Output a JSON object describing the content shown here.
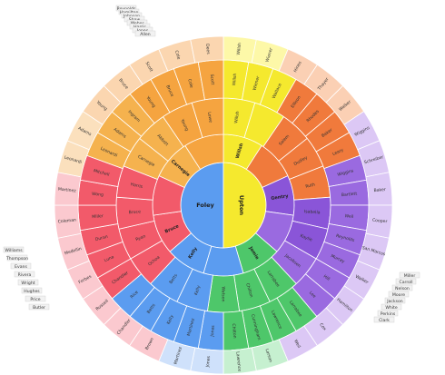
{
  "center": {
    "left": "Foley",
    "right": "Upton"
  },
  "ring1": [
    {
      "label": "Foley",
      "color": "#5b9cf0"
    },
    {
      "label": "Upton",
      "color": "#f5e92e"
    }
  ],
  "ring2": [
    {
      "label": "Willsh",
      "color": "#f5e92e"
    },
    {
      "label": "",
      "color": "#f07a3c"
    },
    {
      "label": "Gentry",
      "color": "#8a55d8"
    },
    {
      "label": "",
      "color": "#9a6ae0"
    },
    {
      "label": "Jamie",
      "color": "#4ec76a"
    },
    {
      "label": "",
      "color": "#5b9cf0"
    },
    {
      "label": "Kelly",
      "color": "#5b9cf0"
    },
    {
      "label": "Bruce",
      "color": "#f25a6a"
    },
    {
      "label": "",
      "color": "#f25a6a"
    },
    {
      "label": "Carnegie",
      "color": "#f5b24e"
    },
    {
      "label": "",
      "color": "#f5a440"
    }
  ],
  "ring3": [
    {
      "label": "Willsh",
      "color": "#f5e92e"
    },
    {
      "label": "",
      "color": "#f5e92e"
    },
    {
      "label": "Salem",
      "color": "#f07a3c"
    },
    {
      "label": "Dudley",
      "color": "#f07a3c"
    },
    {
      "label": "Ruth",
      "color": "#f07a3c"
    },
    {
      "label": "Isabella",
      "color": "#8a55d8"
    },
    {
      "label": "Kaylie",
      "color": "#8a55d8"
    },
    {
      "label": "Jacobsen",
      "color": "#9a6ae0"
    },
    {
      "label": "Larrabee",
      "color": "#4ec76a"
    },
    {
      "label": "Chilton",
      "color": "#4ec76a"
    },
    {
      "label": "Watson",
      "color": "#4ec76a"
    },
    {
      "label": "Kelly",
      "color": "#5b9cf0"
    },
    {
      "label": "Betts",
      "color": "#5b9cf0"
    },
    {
      "label": "Ochoa",
      "color": "#f25a6a"
    },
    {
      "label": "Ryan",
      "color": "#f25a6a"
    },
    {
      "label": "Bruce",
      "color": "#f25a6a"
    },
    {
      "label": "Harris",
      "color": "#f25a6a"
    },
    {
      "label": "Carnegie",
      "color": "#f5b24e"
    },
    {
      "label": "Abbott",
      "color": "#f5b24e"
    },
    {
      "label": "Young",
      "color": "#f5a440"
    },
    {
      "label": "Lowe",
      "color": "#f5a440"
    }
  ],
  "ring4": [
    {
      "label": "Willsh",
      "color": "#f5e92e"
    },
    {
      "label": "Wiener",
      "color": "#f5e92e"
    },
    {
      "label": "Wallace",
      "color": "#f5e92e"
    },
    {
      "label": "Ellison",
      "color": "#f07a3c"
    },
    {
      "label": "Rhodes",
      "color": "#f07a3c"
    },
    {
      "label": "Baker",
      "color": "#f07a3c"
    },
    {
      "label": "Leary",
      "color": "#f07a3c"
    },
    {
      "label": "Wiggins",
      "color": "#9a6ae0"
    },
    {
      "label": "Bartlett",
      "color": "#9a6ae0"
    },
    {
      "label": "Weil",
      "color": "#9a6ae0"
    },
    {
      "label": "Reynolds",
      "color": "#9a6ae0"
    },
    {
      "label": "Murray",
      "color": "#9a6ae0"
    },
    {
      "label": "Hill",
      "color": "#9a6ae0"
    },
    {
      "label": "Lee",
      "color": "#9a6ae0"
    },
    {
      "label": "Larrabee",
      "color": "#4ec76a"
    },
    {
      "label": "Lawrence",
      "color": "#4ec76a"
    },
    {
      "label": "Cunningham",
      "color": "#4ec76a"
    },
    {
      "label": "Chilton",
      "color": "#4ec76a"
    },
    {
      "label": "Jones",
      "color": "#5b9cf0"
    },
    {
      "label": "Martinez",
      "color": "#5b9cf0"
    },
    {
      "label": "Kelly",
      "color": "#5b9cf0"
    },
    {
      "label": "Betts",
      "color": "#5b9cf0"
    },
    {
      "label": "Rice",
      "color": "#5b9cf0"
    },
    {
      "label": "Chandler",
      "color": "#f25a6a"
    },
    {
      "label": "Luna",
      "color": "#f25a6a"
    },
    {
      "label": "Duran",
      "color": "#f25a6a"
    },
    {
      "label": "Miller",
      "color": "#f25a6a"
    },
    {
      "label": "Wong",
      "color": "#f25a6a"
    },
    {
      "label": "Mitchell",
      "color": "#f25a6a"
    },
    {
      "label": "Leonardi",
      "color": "#f5b24e"
    },
    {
      "label": "Adams",
      "color": "#f5b24e"
    },
    {
      "label": "Ingram",
      "color": "#f5b24e"
    },
    {
      "label": "Young",
      "color": "#f5a440"
    },
    {
      "label": "Bruce",
      "color": "#f5a440"
    },
    {
      "label": "Cole",
      "color": "#f5a440"
    },
    {
      "label": "Scott",
      "color": "#f5a440"
    }
  ],
  "ring5": [
    {
      "label": "Willsh",
      "color": "#fdf8a8"
    },
    {
      "label": "Wiener",
      "color": "#fdf8a8"
    },
    {
      "label": "Hines",
      "color": "#fbd0b4"
    },
    {
      "label": "Thayer",
      "color": "#fbd0b4"
    },
    {
      "label": "Walker",
      "color": "#fbd0b4"
    },
    {
      "label": "Wiggins",
      "color": "#dcc8f5"
    },
    {
      "label": "Schreiber",
      "color": "#dcc8f5"
    },
    {
      "label": "Baker",
      "color": "#dcc8f5"
    },
    {
      "label": "Cooper",
      "color": "#dcc8f5"
    },
    {
      "label": "San Marcos",
      "color": "#dcc8f5"
    },
    {
      "label": "Walker",
      "color": "#dcc8f5"
    },
    {
      "label": "Hamilton",
      "color": "#dcc8f5"
    },
    {
      "label": "Cox",
      "color": "#dcc8f5"
    },
    {
      "label": "Weil",
      "color": "#dcc8f5"
    },
    {
      "label": "Larson",
      "color": "#c6f0d0"
    },
    {
      "label": "Lawrence",
      "color": "#c6f0d0"
    },
    {
      "label": "Jones",
      "color": "#cfe1fb"
    },
    {
      "label": "Martinez",
      "color": "#cfe1fb"
    },
    {
      "label": "Brown",
      "color": "#fbc9cf"
    },
    {
      "label": "Chandler",
      "color": "#fbc9cf"
    },
    {
      "label": "Russell",
      "color": "#fbc9cf"
    },
    {
      "label": "Forbes",
      "color": "#fbc9cf"
    },
    {
      "label": "Medellin",
      "color": "#fbc9cf"
    },
    {
      "label": "Coleman",
      "color": "#fbc9cf"
    },
    {
      "label": "Martinez",
      "color": "#fbc9cf"
    },
    {
      "label": "Leonardi",
      "color": "#fbe0bd"
    },
    {
      "label": "Adams",
      "color": "#fbe0bd"
    },
    {
      "label": "Young",
      "color": "#fbd6b0"
    },
    {
      "label": "Bruce",
      "color": "#fbd6b0"
    },
    {
      "label": "Scott",
      "color": "#fbd6b0"
    },
    {
      "label": "Cole",
      "color": "#fbd6b0"
    },
    {
      "label": "Dees",
      "color": "#fbd6b0"
    }
  ],
  "outer_labels": {
    "top": [
      "Reynolds",
      "Hamilton",
      "Johnson",
      "Shaw",
      "Weber",
      "Harris",
      "Jones",
      "Allen"
    ],
    "right": [
      "Miller",
      "Carroll",
      "Nelson",
      "Moore",
      "Jackson",
      "White",
      "Perkins",
      "Clark"
    ],
    "left": [
      "Williams",
      "Thompson",
      "Evans",
      "Rivera",
      "Wright",
      "Hughes",
      "Price",
      "Butler"
    ]
  }
}
